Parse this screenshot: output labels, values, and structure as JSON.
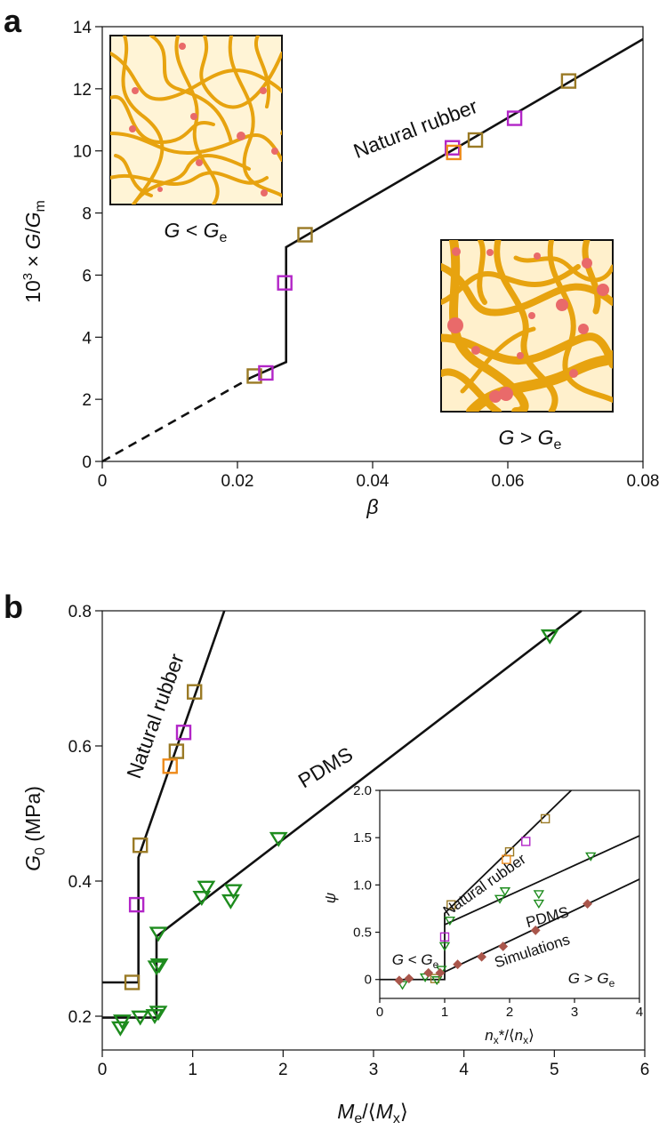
{
  "chart_data": [
    {
      "panel": "a",
      "type": "scatter",
      "xlabel": "β",
      "ylabel": "10³ × G/G_m",
      "xlim": [
        0,
        0.08
      ],
      "ylim": [
        0,
        14
      ],
      "x_ticks": [
        "0",
        "0.02",
        "0.04",
        "0.06",
        "0.08"
      ],
      "y_ticks": [
        "0",
        "2",
        "4",
        "6",
        "8",
        "10",
        "12",
        "14"
      ],
      "annotations": [
        "Natural rubber",
        "G < Ge",
        "G > Ge"
      ],
      "colors": {
        "brown": "#9a7a25",
        "magenta": "#b225c7",
        "orange": "#ee8a1a",
        "line": "#111111"
      },
      "fit_line": {
        "dashed": [
          [
            0,
            0
          ],
          [
            0.022,
            2.7
          ]
        ],
        "solid": [
          [
            0.022,
            2.7
          ],
          [
            0.0272,
            3.2
          ],
          [
            0.0272,
            6.9
          ],
          [
            0.08,
            13.6
          ]
        ]
      },
      "series": [
        {
          "marker": "square",
          "color": "#9a7a25",
          "points": [
            [
              0.0225,
              2.75
            ],
            [
              0.03,
              7.3
            ],
            [
              0.0552,
              10.35
            ],
            [
              0.069,
              12.25
            ]
          ]
        },
        {
          "marker": "square",
          "color": "#b225c7",
          "points": [
            [
              0.0242,
              2.85
            ],
            [
              0.027,
              5.75
            ],
            [
              0.0518,
              10.1
            ],
            [
              0.061,
              11.05
            ]
          ]
        },
        {
          "marker": "square",
          "color": "#ee8a1a",
          "points": [
            [
              0.052,
              9.95
            ]
          ]
        }
      ]
    },
    {
      "panel": "b",
      "type": "scatter",
      "xlabel": "Me/⟨Mx⟩",
      "ylabel": "G0 (MPa)",
      "xlim": [
        0,
        6
      ],
      "ylim": [
        0.15,
        0.8
      ],
      "x_ticks": [
        "0",
        "1",
        "2",
        "3",
        "4",
        "5",
        "6"
      ],
      "y_ticks": [
        "0.2",
        "0.4",
        "0.6",
        "0.8"
      ],
      "annotations": [
        "Natural rubber",
        "PDMS"
      ],
      "fit_lines": [
        {
          "name": "Natural rubber",
          "points": [
            [
              0,
              0.25
            ],
            [
              0.4,
              0.25
            ],
            [
              0.4,
              0.435
            ],
            [
              1.35,
              0.8
            ]
          ]
        },
        {
          "name": "PDMS",
          "points": [
            [
              0,
              0.198
            ],
            [
              0.6,
              0.198
            ],
            [
              0.6,
              0.318
            ],
            [
              5.3,
              0.8
            ]
          ]
        }
      ],
      "series": [
        {
          "marker": "square",
          "color": "#9a7a25",
          "points": [
            [
              0.33,
              0.25
            ],
            [
              0.42,
              0.453
            ],
            [
              0.82,
              0.592
            ],
            [
              1.02,
              0.68
            ]
          ]
        },
        {
          "marker": "square",
          "color": "#b225c7",
          "points": [
            [
              0.38,
              0.365
            ],
            [
              0.9,
              0.62
            ]
          ]
        },
        {
          "marker": "square",
          "color": "#ee8a1a",
          "points": [
            [
              0.75,
              0.57
            ]
          ]
        },
        {
          "marker": "triangle",
          "color": "#1e8c1e",
          "points": [
            [
              0.2,
              0.182
            ],
            [
              0.22,
              0.192
            ],
            [
              0.42,
              0.198
            ],
            [
              0.58,
              0.2
            ],
            [
              0.62,
              0.205
            ],
            [
              0.6,
              0.272
            ],
            [
              0.63,
              0.275
            ],
            [
              0.62,
              0.322
            ],
            [
              1.1,
              0.375
            ],
            [
              1.15,
              0.39
            ],
            [
              1.42,
              0.37
            ],
            [
              1.45,
              0.385
            ],
            [
              1.95,
              0.462
            ],
            [
              4.95,
              0.762
            ]
          ]
        }
      ],
      "inset": {
        "xlabel": "nx*/⟨nx⟩",
        "ylabel": "ψ",
        "xlim": [
          0,
          4
        ],
        "ylim": [
          -0.2,
          2.0
        ],
        "x_ticks": [
          "0",
          "1",
          "2",
          "3",
          "4"
        ],
        "y_ticks": [
          "0",
          "0.5",
          "1.0",
          "1.5",
          "2.0"
        ],
        "annotations": [
          "Natural rubber",
          "PDMS",
          "Simulations",
          "G < Ge",
          "G > Ge"
        ],
        "fit_lines": [
          {
            "name": "Natural rubber",
            "points": [
              [
                0,
                0
              ],
              [
                1,
                0
              ],
              [
                1,
                0.7
              ],
              [
                2.95,
                2.0
              ]
            ]
          },
          {
            "name": "PDMS",
            "points": [
              [
                1,
                0.58
              ],
              [
                4,
                1.52
              ]
            ]
          },
          {
            "name": "Simulations",
            "points": [
              [
                1,
                0.08
              ],
              [
                4,
                1.06
              ]
            ]
          }
        ],
        "series": [
          {
            "marker": "square",
            "color": "#9a7a25",
            "points": [
              [
                0.85,
                0.01
              ],
              [
                1.1,
                0.79
              ],
              [
                2.0,
                1.35
              ],
              [
                2.55,
                1.7
              ]
            ]
          },
          {
            "marker": "square",
            "color": "#b225c7",
            "points": [
              [
                1.0,
                0.45
              ],
              [
                2.25,
                1.46
              ]
            ]
          },
          {
            "marker": "square",
            "color": "#ee8a1a",
            "points": [
              [
                1.95,
                1.27
              ]
            ]
          },
          {
            "marker": "triangle",
            "color": "#1e8c1e",
            "points": [
              [
                0.35,
                -0.06
              ],
              [
                0.7,
                0.02
              ],
              [
                1.0,
                0.35
              ],
              [
                1.08,
                0.62
              ],
              [
                1.85,
                0.85
              ],
              [
                1.93,
                0.93
              ],
              [
                2.45,
                0.8
              ],
              [
                2.45,
                0.9
              ],
              [
                3.25,
                1.3
              ],
              [
                0.95,
                0.1
              ],
              [
                0.88,
                -0.01
              ]
            ]
          },
          {
            "marker": "diamond",
            "color": "#a9564b",
            "points": [
              [
                0.3,
                -0.01
              ],
              [
                0.45,
                0.01
              ],
              [
                0.75,
                0.07
              ],
              [
                0.93,
                0.07
              ],
              [
                1.2,
                0.16
              ],
              [
                1.57,
                0.24
              ],
              [
                1.9,
                0.35
              ],
              [
                2.4,
                0.52
              ],
              [
                3.2,
                0.8
              ]
            ]
          }
        ]
      }
    }
  ]
}
